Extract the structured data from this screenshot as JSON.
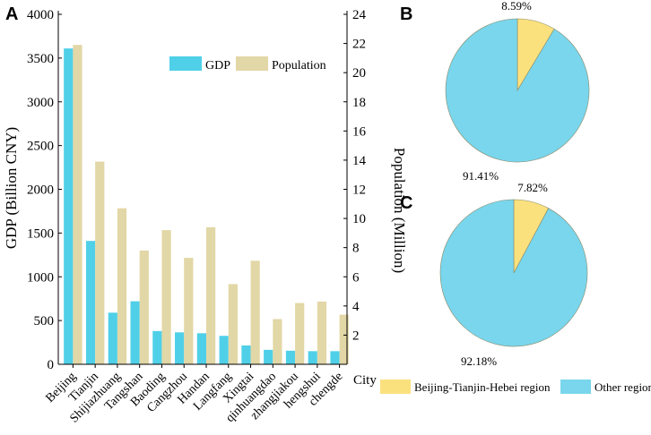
{
  "colors": {
    "gdp": "#4fd0e8",
    "population": "#e2d7a6",
    "pie_bth": "#fbe17e",
    "pie_other": "#79d6ec",
    "axis": "#000000"
  },
  "panels": {
    "a": "A",
    "b": "B",
    "c": "C"
  },
  "chart_data": [
    {
      "type": "bar",
      "panel": "A",
      "categories": [
        "Beijing",
        "Tianjin",
        "Shijiazhuang",
        "Tangshan",
        "Baoding",
        "Cangzhou",
        "Handan",
        "Langfang",
        "Xingtai",
        "qinhuangdao",
        "zhangjiakou",
        "hengshui",
        "chengde"
      ],
      "series": [
        {
          "name": "GDP",
          "axis": "left",
          "values": [
            3610,
            1410,
            590,
            720,
            380,
            365,
            355,
            325,
            215,
            165,
            155,
            150,
            150
          ]
        },
        {
          "name": "Population",
          "axis": "right",
          "values": [
            21.9,
            13.9,
            10.7,
            7.8,
            9.2,
            7.3,
            9.4,
            5.5,
            7.1,
            3.1,
            4.2,
            4.3,
            3.4
          ]
        }
      ],
      "xlabel": "City",
      "ylabel": "GDP (Billion CNY)",
      "y2label": "Population (Million)",
      "ylim": [
        0,
        4000
      ],
      "y2lim": [
        0,
        24
      ],
      "yticks": [
        "0",
        "500",
        "1000",
        "1500",
        "2000",
        "2500",
        "3000",
        "3500",
        "4000"
      ],
      "y2ticks": [
        "2",
        "4",
        "6",
        "8",
        "10",
        "12",
        "14",
        "16",
        "18",
        "20",
        "22",
        "24"
      ],
      "legend": [
        "GDP",
        "Population"
      ],
      "legend_position": "top-right"
    },
    {
      "type": "pie",
      "panel": "B",
      "labels": [
        "Beijing-Tianjin-Hebei region",
        "Other region"
      ],
      "values": [
        8.59,
        91.41
      ],
      "label_texts": [
        "8.59%",
        "91.41%"
      ]
    },
    {
      "type": "pie",
      "panel": "C",
      "labels": [
        "Beijing-Tianjin-Hebei region",
        "Other region"
      ],
      "values": [
        7.82,
        92.18
      ],
      "label_texts": [
        "7.82%",
        "92.18%"
      ]
    }
  ],
  "pie_legend": [
    "Beijing-Tianjin-Hebei region",
    "Other region"
  ]
}
